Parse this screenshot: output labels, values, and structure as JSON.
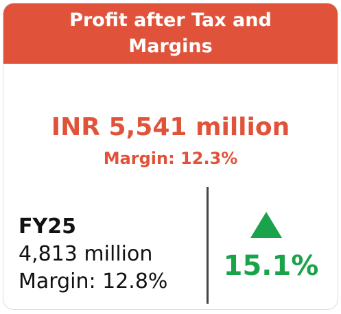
{
  "header": {
    "title_line1": "Profit after Tax and",
    "title_line2": "Margins"
  },
  "current": {
    "value": "INR 5,541 million",
    "margin": "Margin: 12.3%"
  },
  "previous": {
    "period": "FY25",
    "value": "4,813 million",
    "margin": "Margin: 12.8%"
  },
  "growth": {
    "value": "15.1%"
  }
}
